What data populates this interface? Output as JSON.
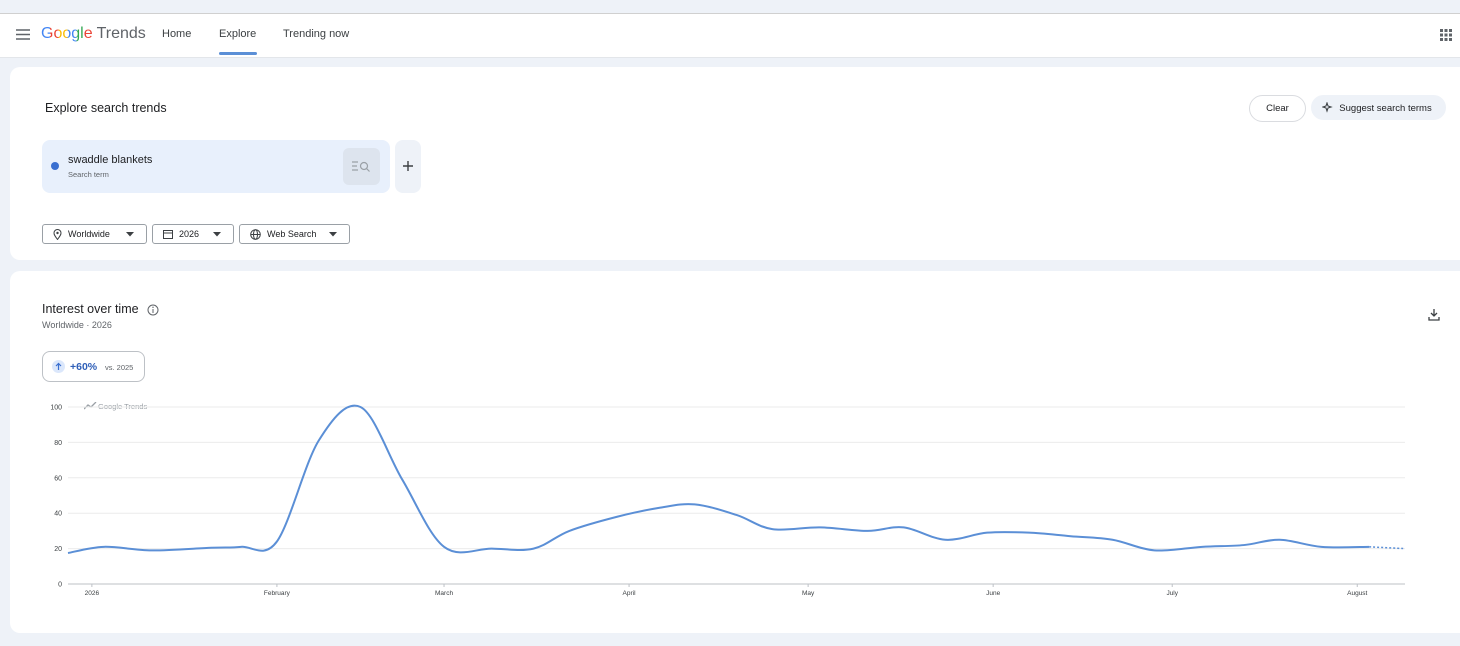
{
  "header": {
    "logo": "Google",
    "product": "Trends",
    "nav": [
      "Home",
      "Explore",
      "Trending now"
    ]
  },
  "explore": {
    "title": "Explore search trends",
    "buttons": [
      "Clear",
      "Suggest search terms"
    ],
    "term": {
      "label": "swaddle blankets",
      "type": "Search term"
    },
    "filters": [
      "Worldwide",
      "2026",
      "Web Search"
    ]
  },
  "interest": {
    "title": "Interest over time",
    "subtitle": "Worldwide · 2026",
    "change": "+60%",
    "comparison": "vs. 2025",
    "watermark": "Google Trends"
  },
  "chart_data": {
    "type": "line",
    "color": "#5b8fd6",
    "partial_last_point": true,
    "x": [
      -4,
      2,
      10,
      20,
      25,
      31,
      38,
      45,
      52,
      59,
      67,
      74,
      80,
      88,
      95,
      101,
      108,
      114,
      122,
      130,
      136,
      143,
      150,
      157,
      164,
      171,
      178,
      186,
      193,
      199,
      206,
      214,
      220
    ],
    "values": [
      17.5,
      21,
      19,
      20.5,
      21,
      24,
      81,
      100,
      59,
      21,
      20,
      20,
      30,
      38,
      43,
      45,
      39,
      31,
      32,
      30,
      32,
      25,
      29,
      29,
      27,
      25,
      19,
      21,
      22,
      25,
      21,
      21,
      20
    ],
    "xlim": [
      -4,
      220
    ],
    "xticks": [
      {
        "value": 0,
        "label": "2026"
      },
      {
        "value": 31,
        "label": "February"
      },
      {
        "value": 59,
        "label": "March"
      },
      {
        "value": 90,
        "label": "April"
      },
      {
        "value": 120,
        "label": "May"
      },
      {
        "value": 151,
        "label": "June"
      },
      {
        "value": 181,
        "label": "July"
      },
      {
        "value": 212,
        "label": "August"
      }
    ],
    "ylim": [
      0,
      100
    ],
    "yticks": [
      0,
      20,
      40,
      60,
      80,
      100
    ],
    "grid": true
  }
}
